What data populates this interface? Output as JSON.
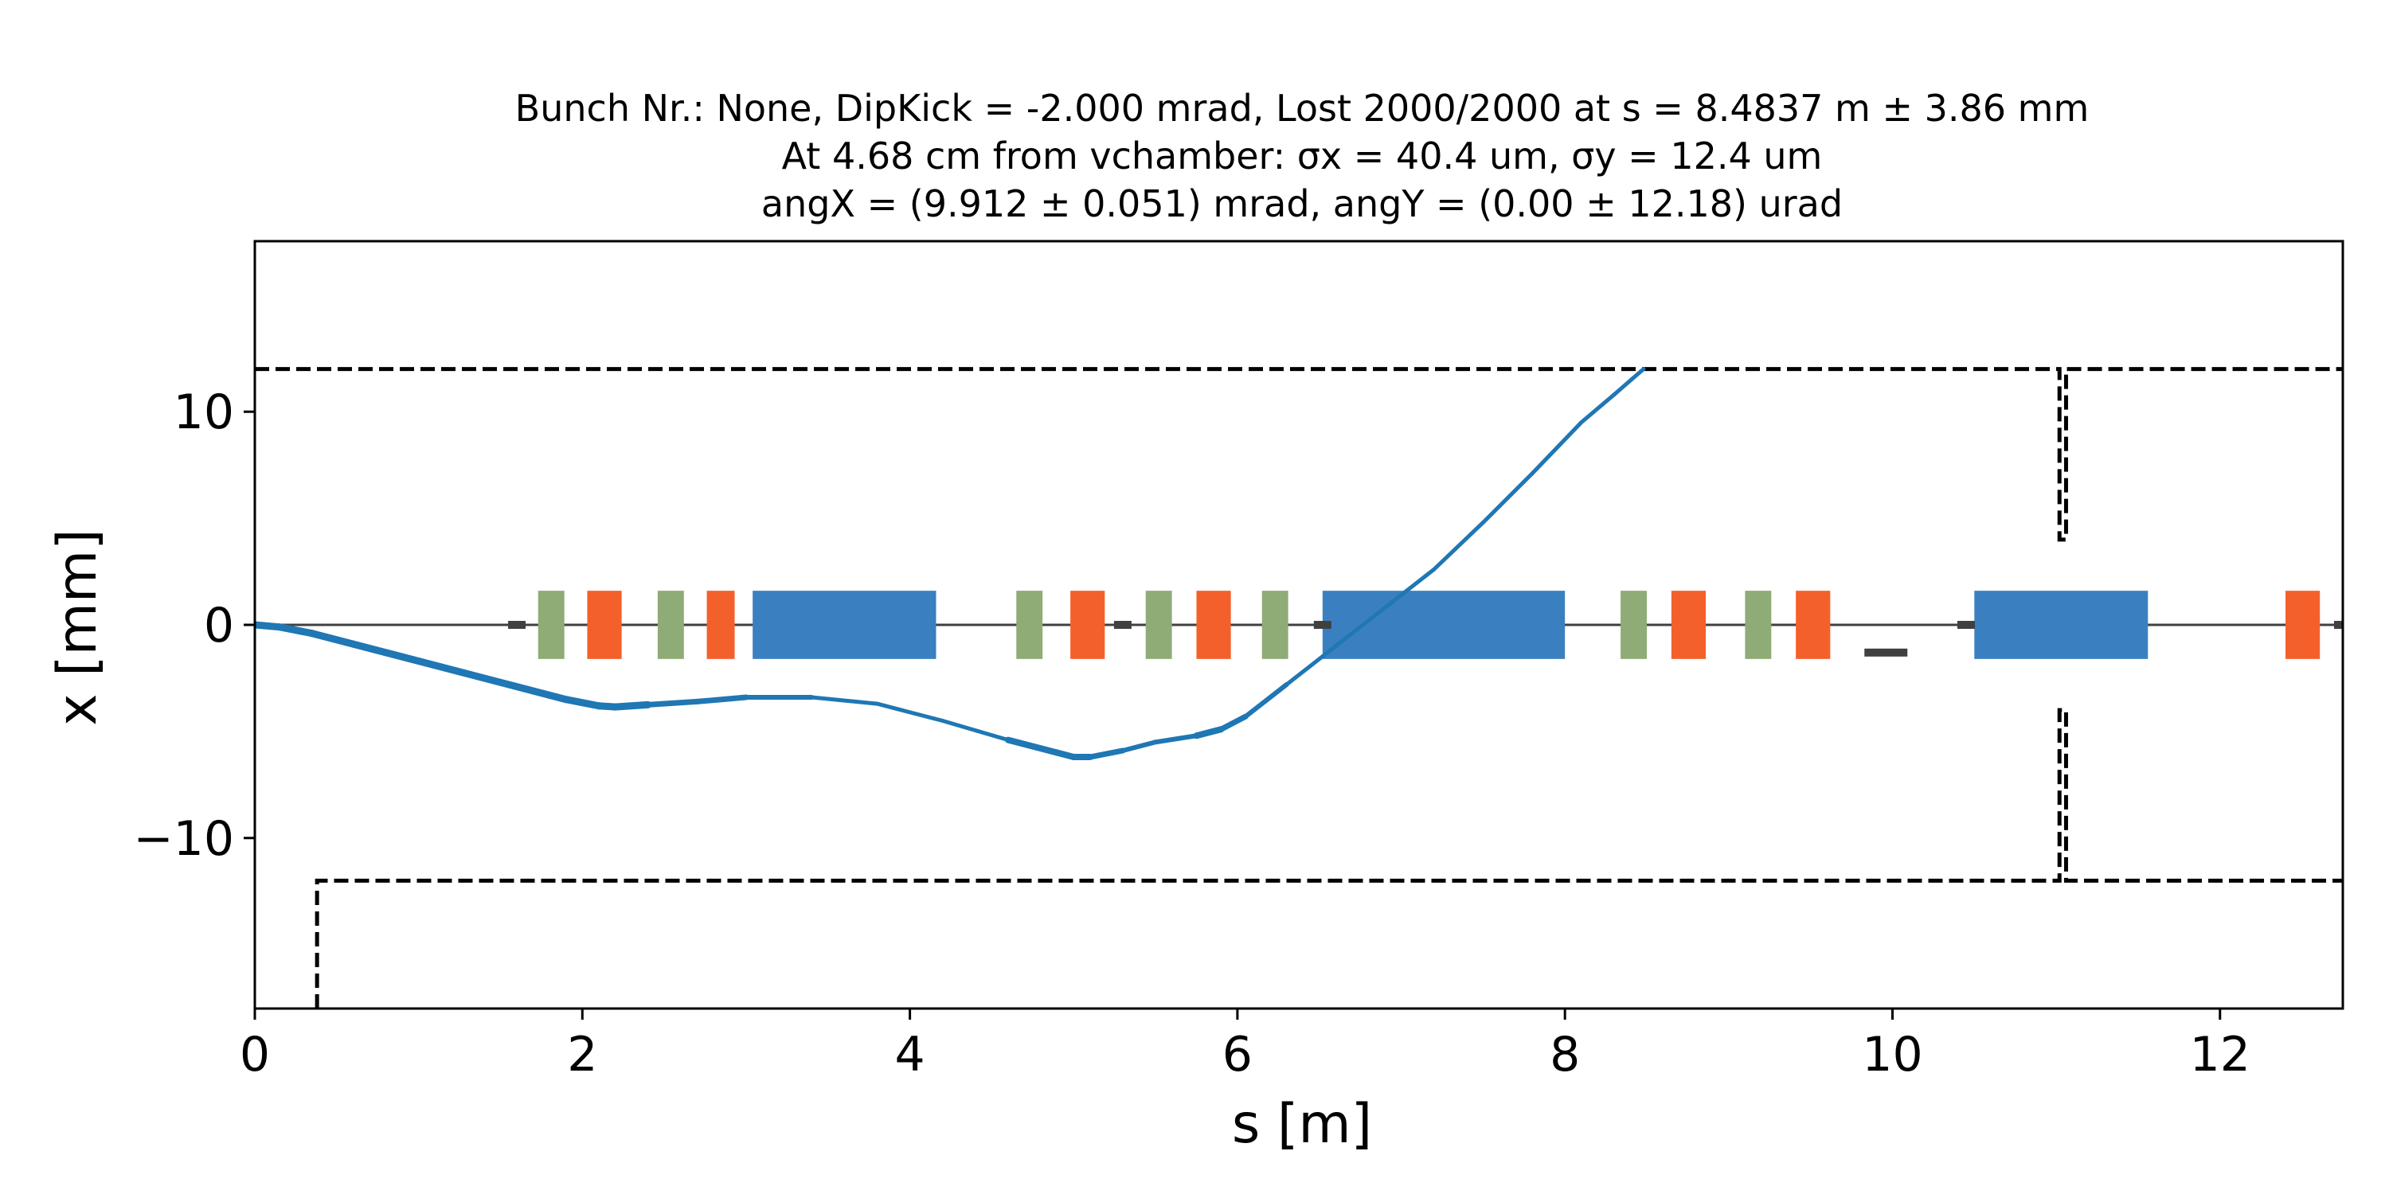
{
  "chart_data": {
    "type": "line",
    "title": [
      "Bunch Nr.: None, DipKick = -2.000 mrad, Lost 2000/2000 at s = 8.4837 m ± 3.86 mm",
      "At 4.68 cm from vchamber: σx = 40.4 um, σy = 12.4 um",
      "angX = (9.912 ± 0.051) mrad, angY = (0.00 ± 12.18) urad"
    ],
    "xlabel": "s [m]",
    "ylabel": "x [mm]",
    "xlim": [
      0,
      12.75
    ],
    "ylim": [
      -18,
      18
    ],
    "xticks": [
      0,
      2,
      4,
      6,
      8,
      10,
      12
    ],
    "yticks": [
      -10,
      0,
      10
    ],
    "ytick_labels": [
      "−10",
      "0",
      "10"
    ],
    "grid": false,
    "colors": {
      "trajectory": "#1f77b4",
      "dipole": "#3a80c0",
      "quadrupole": "#f4602b",
      "sextupole": "#8fab76",
      "corrector": "#404040",
      "chamber": "#000000",
      "beamline": "#404040"
    },
    "trajectory": {
      "s": [
        0,
        0.15,
        0.35,
        0.6,
        1.0,
        1.5,
        1.9,
        2.1,
        2.2,
        2.4,
        2.7,
        3.0,
        3.4,
        3.8,
        4.2,
        4.6,
        4.9,
        5.0,
        5.1,
        5.3,
        5.5,
        5.75,
        5.9,
        6.05,
        6.3,
        6.6,
        6.9,
        7.2,
        7.5,
        7.8,
        8.1,
        8.3,
        8.48
      ],
      "x": [
        0,
        -0.1,
        -0.4,
        -0.9,
        -1.7,
        -2.7,
        -3.5,
        -3.8,
        -3.85,
        -3.75,
        -3.6,
        -3.4,
        -3.4,
        -3.7,
        -4.5,
        -5.4,
        -6.0,
        -6.2,
        -6.2,
        -5.9,
        -5.5,
        -5.2,
        -4.9,
        -4.3,
        -2.8,
        -1.0,
        0.8,
        2.6,
        4.8,
        7.1,
        9.5,
        10.8,
        12.0
      ],
      "linewidth_by_segment": [
        9,
        9,
        9,
        9,
        9,
        9,
        9,
        9,
        9,
        7,
        7,
        6,
        5,
        5,
        5,
        8,
        8,
        8,
        7,
        6,
        6,
        8,
        7,
        6,
        5,
        5,
        5,
        5,
        5,
        5,
        5,
        5
      ]
    },
    "chamber": {
      "upper": {
        "s": [
          0,
          11.02,
          11.02,
          11.06,
          11.06,
          12.75
        ],
        "x": [
          12,
          12,
          4,
          4,
          12,
          12
        ]
      },
      "lower": {
        "s": [
          0.38,
          0.38,
          11.02,
          11.02,
          11.06,
          11.06,
          12.75
        ],
        "x": [
          -18,
          -12,
          -12,
          -4,
          -4,
          -12,
          -12
        ]
      }
    },
    "lattice": {
      "dipoles": [
        {
          "s0": 3.04,
          "s1": 4.16
        },
        {
          "s0": 6.52,
          "s1": 8.0
        },
        {
          "s0": 10.5,
          "s1": 11.56
        }
      ],
      "quadrupoles": [
        {
          "s0": 2.03,
          "s1": 2.24
        },
        {
          "s0": 2.76,
          "s1": 2.93
        },
        {
          "s0": 4.98,
          "s1": 5.19
        },
        {
          "s0": 5.75,
          "s1": 5.96
        },
        {
          "s0": 8.65,
          "s1": 8.86
        },
        {
          "s0": 9.41,
          "s1": 9.62
        },
        {
          "s0": 12.4,
          "s1": 12.61
        }
      ],
      "sextupoles": [
        {
          "s0": 1.73,
          "s1": 1.89
        },
        {
          "s0": 2.46,
          "s1": 2.62
        },
        {
          "s0": 4.65,
          "s1": 4.81
        },
        {
          "s0": 5.44,
          "s1": 5.6
        },
        {
          "s0": 6.15,
          "s1": 6.31
        },
        {
          "s0": 8.34,
          "s1": 8.5
        },
        {
          "s0": 9.1,
          "s1": 9.26
        }
      ],
      "correctors": [
        {
          "s": 1.6,
          "x": 0
        },
        {
          "s": 5.3,
          "x": 0
        },
        {
          "s": 6.52,
          "x": 0
        },
        {
          "s": 9.96,
          "x": -1.3
        },
        {
          "s": 10.45,
          "x": 0
        },
        {
          "s": 12.75,
          "x": 0
        }
      ]
    }
  }
}
